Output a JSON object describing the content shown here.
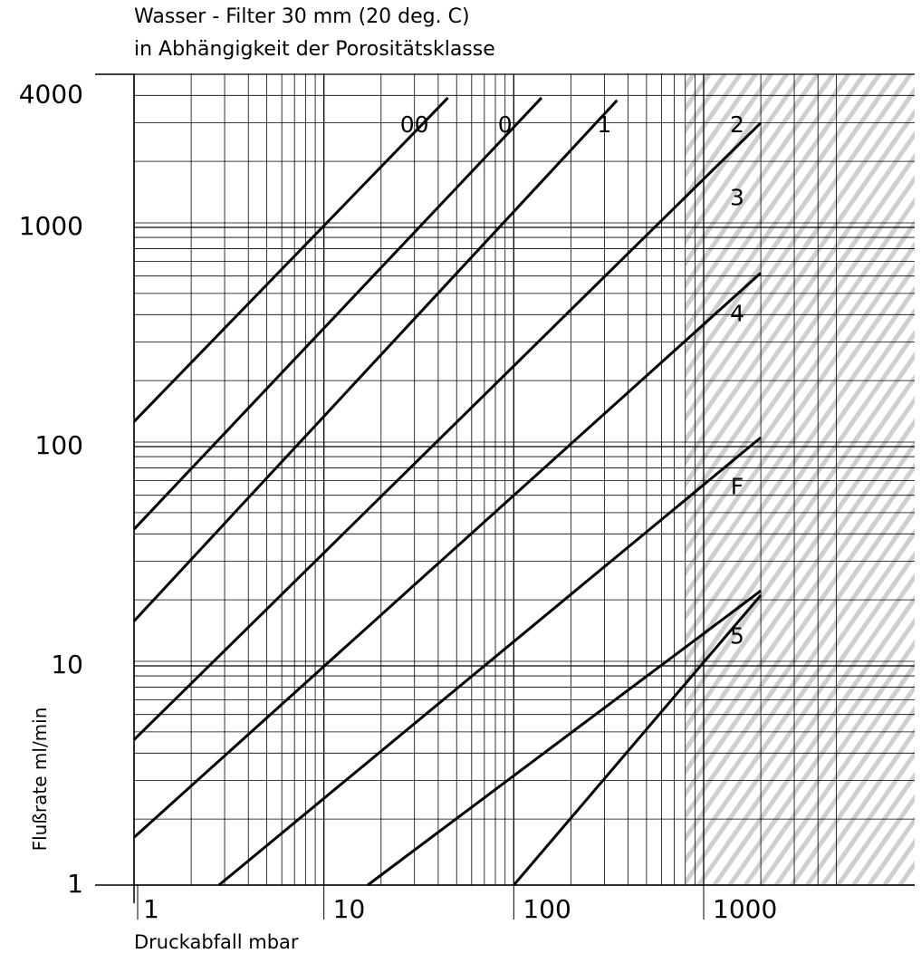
{
  "chart_data": {
    "type": "line",
    "title": "Wasser - Filter 30 mm  (20 deg. C)",
    "subtitle": "in Abhängigkeit der Porositätsklasse",
    "xlabel": "Druckabfall   mbar",
    "ylabel": "Flußrate  ml/min",
    "x_scale": "log",
    "y_scale": "log",
    "xlim": [
      1,
      5000
    ],
    "ylim": [
      1,
      4000
    ],
    "x_ticks": [
      "1",
      "10",
      "100",
      "1000"
    ],
    "y_ticks": [
      "4000",
      "1000",
      "100",
      "10",
      "1"
    ],
    "grid": true,
    "shaded_region": {
      "x_from": 800,
      "x_to": 5000,
      "pattern": "diagonal-hatch"
    },
    "series": [
      {
        "name": "00",
        "x": [
          1,
          45
        ],
        "y": [
          130,
          3900
        ]
      },
      {
        "name": "0",
        "x": [
          1,
          140
        ],
        "y": [
          42,
          3900
        ]
      },
      {
        "name": "1",
        "x": [
          1,
          350
        ],
        "y": [
          16,
          3800
        ]
      },
      {
        "name": "2",
        "x": [
          1,
          2000
        ],
        "y": [
          4.6,
          3000
        ]
      },
      {
        "name": "3",
        "x": [
          1,
          2000
        ],
        "y": [
          1.65,
          620
        ]
      },
      {
        "name": "4",
        "x": [
          2.8,
          2000
        ],
        "y": [
          1,
          110
        ]
      },
      {
        "name": "F",
        "x": [
          17,
          2000
        ],
        "y": [
          1,
          22
        ]
      },
      {
        "name": "5",
        "x": [
          100,
          2000
        ],
        "y": [
          1,
          21
        ]
      }
    ],
    "curve_labels": [
      {
        "text": "00",
        "x": 30,
        "y": 2900
      },
      {
        "text": "0",
        "x": 90,
        "y": 2900
      },
      {
        "text": "1",
        "x": 300,
        "y": 2900
      },
      {
        "text": "2",
        "x": 1500,
        "y": 2900
      },
      {
        "text": "3",
        "x": 1500,
        "y": 1350
      },
      {
        "text": "4",
        "x": 1500,
        "y": 400
      },
      {
        "text": "F",
        "x": 1500,
        "y": 65
      },
      {
        "text": "5",
        "x": 1500,
        "y": 13.5
      }
    ]
  }
}
